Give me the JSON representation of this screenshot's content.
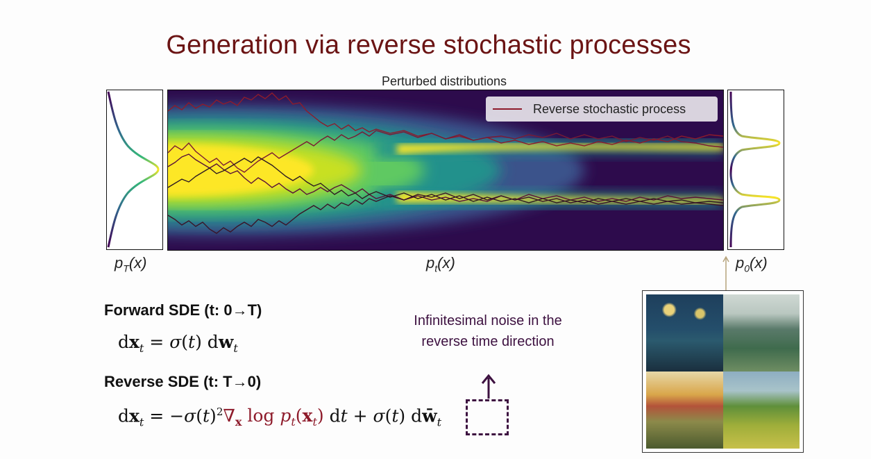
{
  "slide": {
    "title": "Generation via reverse stochastic processes",
    "figure_title": "Perturbed distributions",
    "legend": "Reverse stochastic process",
    "label_pT": "p",
    "label_pT_sub": "T",
    "label_pT_tail": "(x)",
    "label_pt": "p",
    "label_pt_sub": "t",
    "label_pt_tail": "(x)",
    "label_p0": "p",
    "label_p0_sub": "0",
    "label_p0_tail": "(x)",
    "forward_heading": "Forward SDE (t: 0→T)",
    "reverse_heading": "Reverse SDE (t: T→0)",
    "noise_note": "Infinitesimal noise in the reverse time direction"
  },
  "colors": {
    "title": "#6b1414",
    "path": "#8e1b2b",
    "note": "#3d1140"
  }
}
